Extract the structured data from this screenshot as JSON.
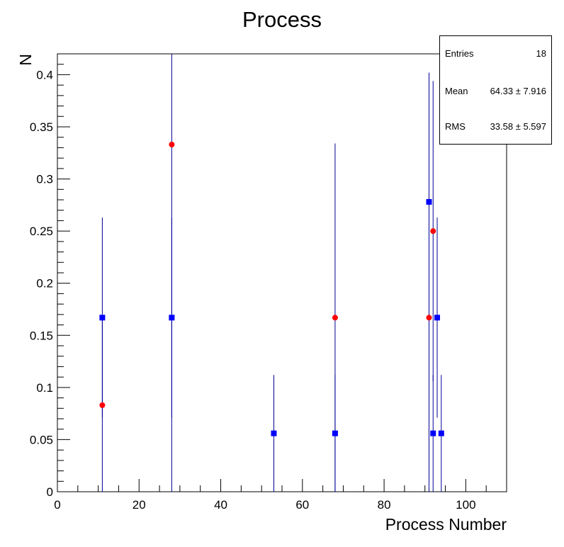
{
  "chart_data": {
    "type": "scatter",
    "title": "Process",
    "xlabel": "Process Number",
    "ylabel": "N",
    "xlim": [
      0,
      110
    ],
    "ylim": [
      0,
      0.42
    ],
    "x_ticks": [
      0,
      20,
      40,
      60,
      80,
      100
    ],
    "x_tick_labels": [
      "0",
      "20",
      "40",
      "60",
      "80",
      "100"
    ],
    "y_ticks": [
      0,
      0.05,
      0.1,
      0.15,
      0.2,
      0.25,
      0.3,
      0.35,
      0.4
    ],
    "y_tick_labels": [
      "0",
      "0.05",
      "0.1",
      "0.15",
      "0.2",
      "0.25",
      "0.3",
      "0.35",
      "0.4"
    ],
    "grid": false,
    "series": [
      {
        "marker": "square",
        "color": "#0000ff",
        "points": [
          {
            "x": 11,
            "y": 0.167,
            "err": 0.096
          },
          {
            "x": 28,
            "y": 0.167,
            "err": 0.096
          },
          {
            "x": 53,
            "y": 0.056,
            "err": 0.056
          },
          {
            "x": 68,
            "y": 0.056,
            "err": 0.056
          },
          {
            "x": 91,
            "y": 0.278,
            "err": 0.124
          },
          {
            "x": 92,
            "y": 0.056,
            "err": 0.056
          },
          {
            "x": 93,
            "y": 0.167,
            "err": 0.096
          },
          {
            "x": 94,
            "y": 0.056,
            "err": 0.056
          }
        ]
      },
      {
        "marker": "circle",
        "color": "#ff0000",
        "points": [
          {
            "x": 11,
            "y": 0.083,
            "err": 0.083
          },
          {
            "x": 28,
            "y": 0.333,
            "err": 0.333
          },
          {
            "x": 68,
            "y": 0.167,
            "err": 0.167
          },
          {
            "x": 91,
            "y": 0.167,
            "err": 0.167
          },
          {
            "x": 92,
            "y": 0.25,
            "err": 0.144
          }
        ]
      }
    ],
    "error_bar_color": "#000099"
  },
  "stats": {
    "entries_label": "Entries",
    "entries_value": "18",
    "mean_label": "Mean",
    "mean_value": "64.33 ±  7.916",
    "rms_label": "RMS",
    "rms_value": "33.58 ±  5.597"
  }
}
